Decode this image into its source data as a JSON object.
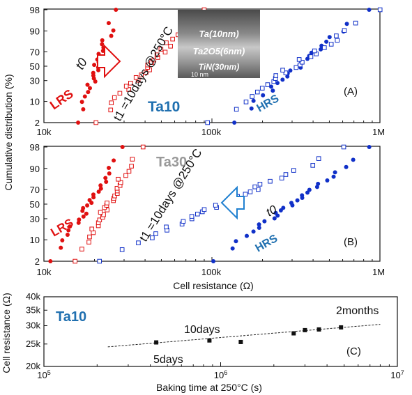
{
  "colors": {
    "lrs": "#e01010",
    "hrs": "#1030c8",
    "tag": "#2070b0",
    "gray_label": "#999999",
    "arrow": "#2080d0"
  },
  "chart_data": [
    {
      "type": "scatter",
      "panel": "(A)",
      "xscale": "log",
      "xlim": [
        10000,
        1000000
      ],
      "x_tick_labels": [
        "10k",
        "100k",
        "1M"
      ],
      "y_tick_labels": [
        "2",
        "10",
        "30",
        "50",
        "70",
        "90",
        "98"
      ],
      "ylabel": "Cumulative distribution (%)",
      "labels": {
        "lrs": "LRS",
        "hrs": "HRS",
        "material": "Ta10",
        "t0": "t0",
        "t1": "t1 =10days @250°C",
        "panel": "(A)"
      },
      "inset_lines": [
        "Ta(10nm)",
        "Ta2O5(6nm)",
        "TiN(30nm)",
        "10 nm"
      ],
      "series": [
        {
          "name": "LRS t0",
          "color": "red",
          "marker": "filled",
          "x_range": [
            16000,
            27000
          ],
          "y_range": [
            2,
            98
          ]
        },
        {
          "name": "LRS t1",
          "color": "red",
          "marker": "open",
          "x_range": [
            20000,
            88000
          ],
          "y_range": [
            2,
            98
          ]
        },
        {
          "name": "HRS t0",
          "color": "blue",
          "marker": "filled",
          "x_range": [
            130000,
            830000
          ],
          "y_range": [
            2,
            98
          ]
        },
        {
          "name": "HRS t1",
          "color": "blue",
          "marker": "open",
          "x_range": [
            100000,
            950000
          ],
          "y_range": [
            2,
            98
          ]
        }
      ]
    },
    {
      "type": "scatter",
      "panel": "(B)",
      "xscale": "log",
      "xlim": [
        10000,
        1000000
      ],
      "x_tick_labels": [
        "10k",
        "100k",
        "1M"
      ],
      "y_tick_labels": [
        "2",
        "10",
        "30",
        "50",
        "70",
        "90",
        "98"
      ],
      "xlabel": "Cell resistance (Ω)",
      "labels": {
        "lrs": "LRS",
        "hrs": "HRS",
        "material": "Ta30",
        "t0": "t0",
        "t1": "t1 =10days @250°C",
        "panel": "(B)"
      },
      "series": [
        {
          "name": "LRS t0",
          "color": "red",
          "marker": "filled",
          "x_range": [
            11000,
            31000
          ],
          "y_range": [
            2,
            98
          ]
        },
        {
          "name": "LRS t1",
          "color": "red",
          "marker": "open",
          "x_range": [
            15000,
            38000
          ],
          "y_range": [
            2,
            98
          ]
        },
        {
          "name": "HRS t0",
          "color": "blue",
          "marker": "filled",
          "x_range": [
            98000,
            900000
          ],
          "y_range": [
            2,
            98
          ]
        },
        {
          "name": "HRS t1",
          "color": "blue",
          "marker": "open",
          "x_range": [
            20000,
            650000
          ],
          "y_range": [
            2,
            98
          ]
        }
      ]
    },
    {
      "type": "scatter",
      "panel": "(C)",
      "xscale": "log",
      "yscale": "log",
      "xlim": [
        100000,
        10000000
      ],
      "ylim": [
        20000,
        40000
      ],
      "x_tick_labels": [
        "10^5",
        "10^6",
        "10^7"
      ],
      "y_tick_labels": [
        "20k",
        "25k",
        "30k",
        "35k",
        "40k"
      ],
      "xlabel": "Baking time at 250°C (s)",
      "ylabel": "Cell resistance (Ω)",
      "labels": {
        "material": "Ta10",
        "panel": "(C)",
        "ann_5": "5days",
        "ann_10": "10days",
        "ann_2m": "2months"
      },
      "points": [
        {
          "x": 432000,
          "y": 25400
        },
        {
          "x": 864000,
          "y": 25900
        },
        {
          "x": 1300000,
          "y": 25500
        },
        {
          "x": 2590000,
          "y": 27800
        },
        {
          "x": 3000000,
          "y": 28700
        },
        {
          "x": 3600000,
          "y": 28900
        },
        {
          "x": 4800000,
          "y": 29500
        }
      ],
      "trend": {
        "style": "dashed",
        "from": [
          230000,
          24300
        ],
        "to": [
          8000000,
          30400
        ]
      }
    }
  ]
}
